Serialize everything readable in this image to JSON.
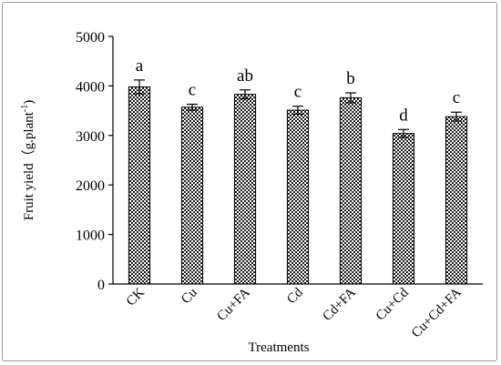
{
  "chart_data": {
    "type": "bar",
    "categories": [
      "CK",
      "Cu",
      "Cu+FA",
      "Cd",
      "Cd+FA",
      "Cu+Cd",
      "Cu+Cd+FA"
    ],
    "values": [
      3980,
      3570,
      3830,
      3510,
      3760,
      3040,
      3380
    ],
    "errors": [
      140,
      60,
      90,
      80,
      100,
      80,
      90
    ],
    "significance_letters": [
      "a",
      "c",
      "ab",
      "c",
      "b",
      "d",
      "c"
    ],
    "xlabel": "Treatments",
    "ylabel": "Fruit yield（g.plant",
    "ylabel_sup": "-1",
    "ylabel_close": ")",
    "ylim": [
      0,
      5000
    ],
    "yticks": [
      0,
      1000,
      2000,
      3000,
      4000,
      5000
    ],
    "bar_fill": "checkered",
    "grid": false,
    "legend": "none"
  }
}
